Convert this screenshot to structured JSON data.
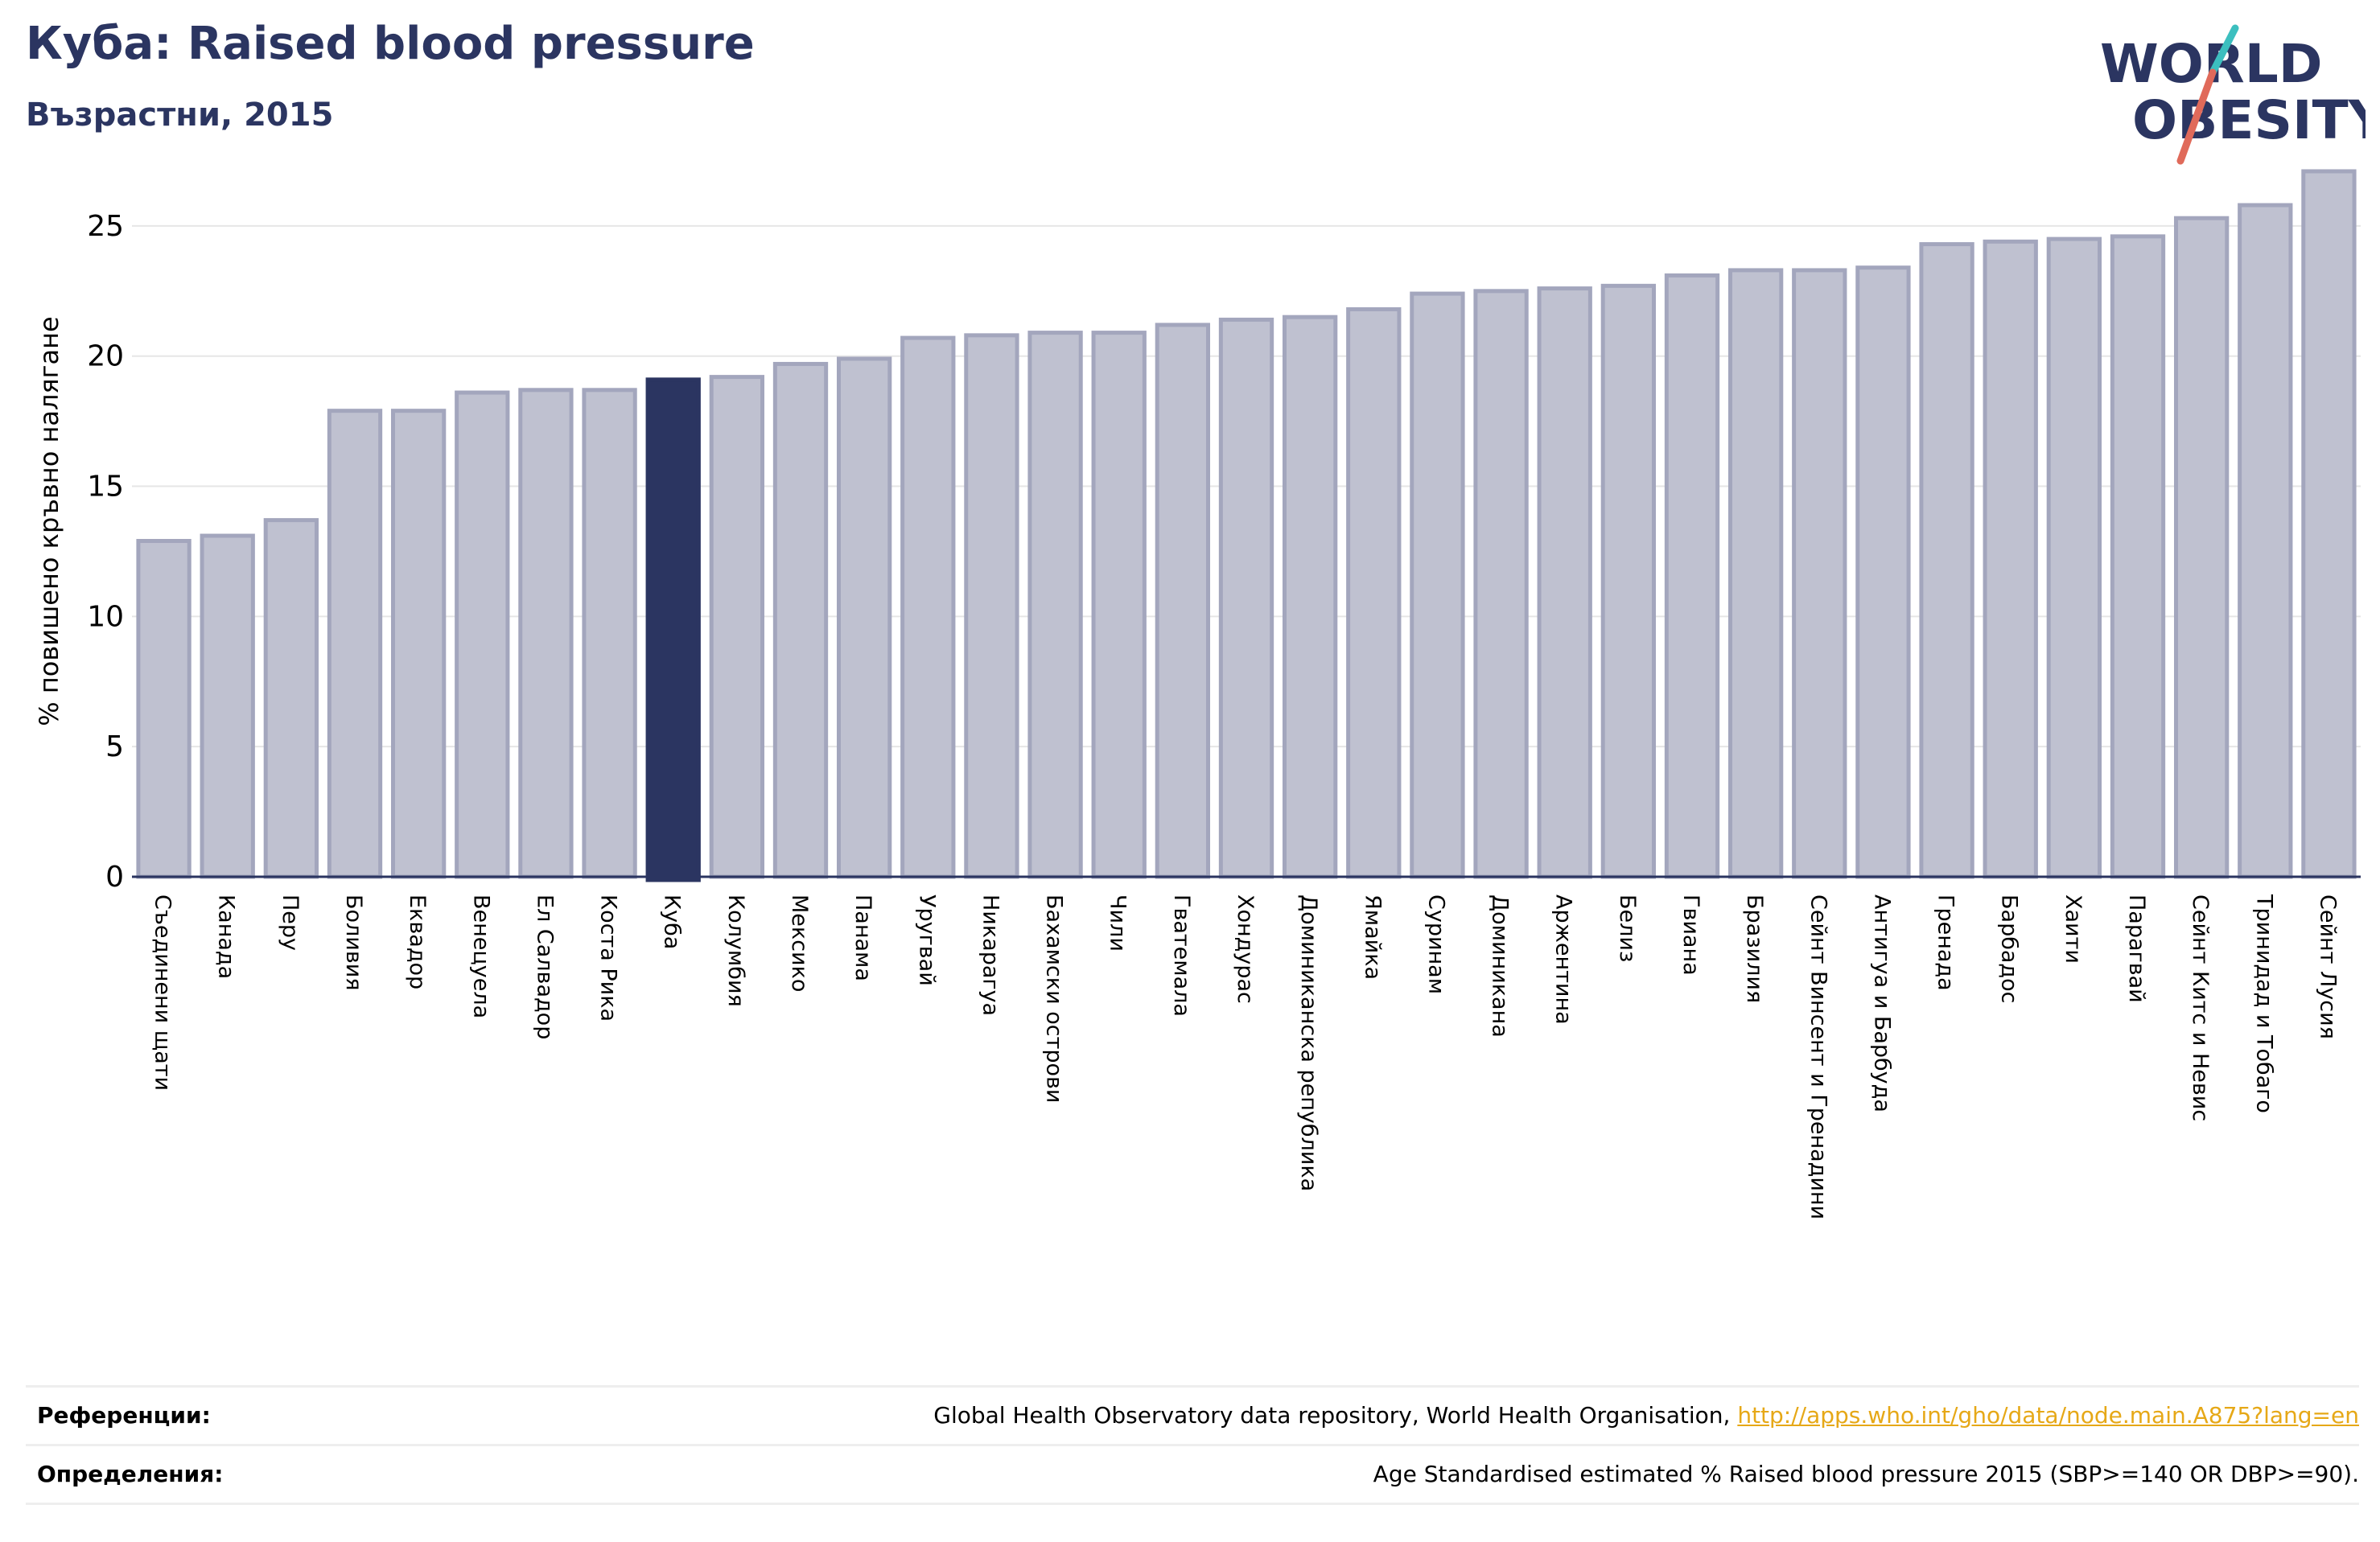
{
  "header": {
    "title": "Куба: Raised blood pressure",
    "subtitle": "Възрастни, 2015"
  },
  "logo": {
    "line1": "WORLD",
    "line2": "OBESITY",
    "text_color": "#2b3561",
    "slash_colors": [
      "#3cbfbf",
      "#e06a5a"
    ]
  },
  "chart_data": {
    "type": "bar",
    "ylabel": "% повишено кръвно налягане",
    "xlabel": "",
    "ylim": [
      0,
      27.5
    ],
    "yticks": [
      0,
      5,
      10,
      15,
      20,
      25
    ],
    "grid": true,
    "highlight": "Куба",
    "colors": {
      "bar": "#bfc1d0",
      "bar_edge": "#a3a6bd",
      "highlight": "#2b3561"
    },
    "categories": [
      "Съединени щати",
      "Канада",
      "Перу",
      "Боливия",
      "Еквадор",
      "Венецуела",
      "Ел Салвадор",
      "Коста Рика",
      "Куба",
      "Колумбия",
      "Мексико",
      "Панама",
      "Уругвай",
      "Никарагуа",
      "Бахамски острови",
      "Чили",
      "Гватемала",
      "Хондурас",
      "Доминиканска република",
      "Ямайка",
      "Суринам",
      "Доминикана",
      "Аржентина",
      "Белиз",
      "Гвиана",
      "Бразилия",
      "Сейнт Винсент и Гренадини",
      "Антигуа и Барбуда",
      "Гренада",
      "Барбадос",
      "Хаити",
      "Парагвай",
      "Сейнт Китс и Невис",
      "Тринидад и Тобаго",
      "Сейнт Лусия"
    ],
    "values": [
      12.9,
      13.1,
      13.7,
      17.9,
      17.9,
      18.6,
      18.7,
      18.7,
      19.1,
      19.2,
      19.7,
      19.9,
      20.7,
      20.8,
      20.9,
      20.9,
      21.2,
      21.4,
      21.5,
      21.8,
      22.4,
      22.5,
      22.6,
      22.7,
      23.1,
      23.3,
      23.3,
      23.4,
      24.3,
      24.4,
      24.5,
      24.6,
      25.3,
      25.8,
      27.1
    ]
  },
  "references": {
    "label": "Референции:",
    "text": "Global Health Observatory data repository, World Health Organisation, ",
    "link": "http://apps.who.int/gho/data/node.main.A875?lang=en"
  },
  "definitions": {
    "label": "Определения:",
    "text": "Age Standardised estimated % Raised blood pressure 2015 (SBP>=140 OR DBP>=90)."
  }
}
